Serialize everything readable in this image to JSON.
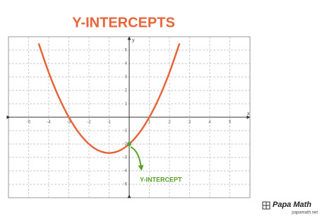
{
  "chart_data": {
    "type": "line",
    "title": "Y-INTERCEPTS",
    "x_label": "x",
    "y_label": "y",
    "x": [
      -4.5,
      -4,
      -3.5,
      -3,
      -2.5,
      -2,
      -1.5,
      -1,
      -0.5,
      0,
      0.5,
      1,
      1.5,
      2,
      2.5
    ],
    "series": [
      {
        "color": "#e8643a",
        "values": [
          5.5,
          3.333,
          1.5,
          0,
          -1.167,
          -2,
          -2.5,
          -2.667,
          -2.5,
          -2,
          -1.167,
          0,
          1.5,
          3.333,
          5.5
        ]
      }
    ],
    "xlim": [
      -6,
      6
    ],
    "ylim": [
      -6,
      6
    ],
    "xticks": [
      -5,
      -4,
      -3,
      -2,
      -1,
      1,
      2,
      3,
      4,
      5
    ],
    "yticks": [
      -5,
      -4,
      -3,
      -2,
      -1,
      1,
      2,
      3,
      4,
      5
    ],
    "grid": true,
    "annotation": {
      "text": "Y-INTERCEPT",
      "x": 0,
      "y": -2,
      "color": "#5aa02c"
    }
  },
  "brand": {
    "name": "Papa Math",
    "site": "papamath.net"
  }
}
